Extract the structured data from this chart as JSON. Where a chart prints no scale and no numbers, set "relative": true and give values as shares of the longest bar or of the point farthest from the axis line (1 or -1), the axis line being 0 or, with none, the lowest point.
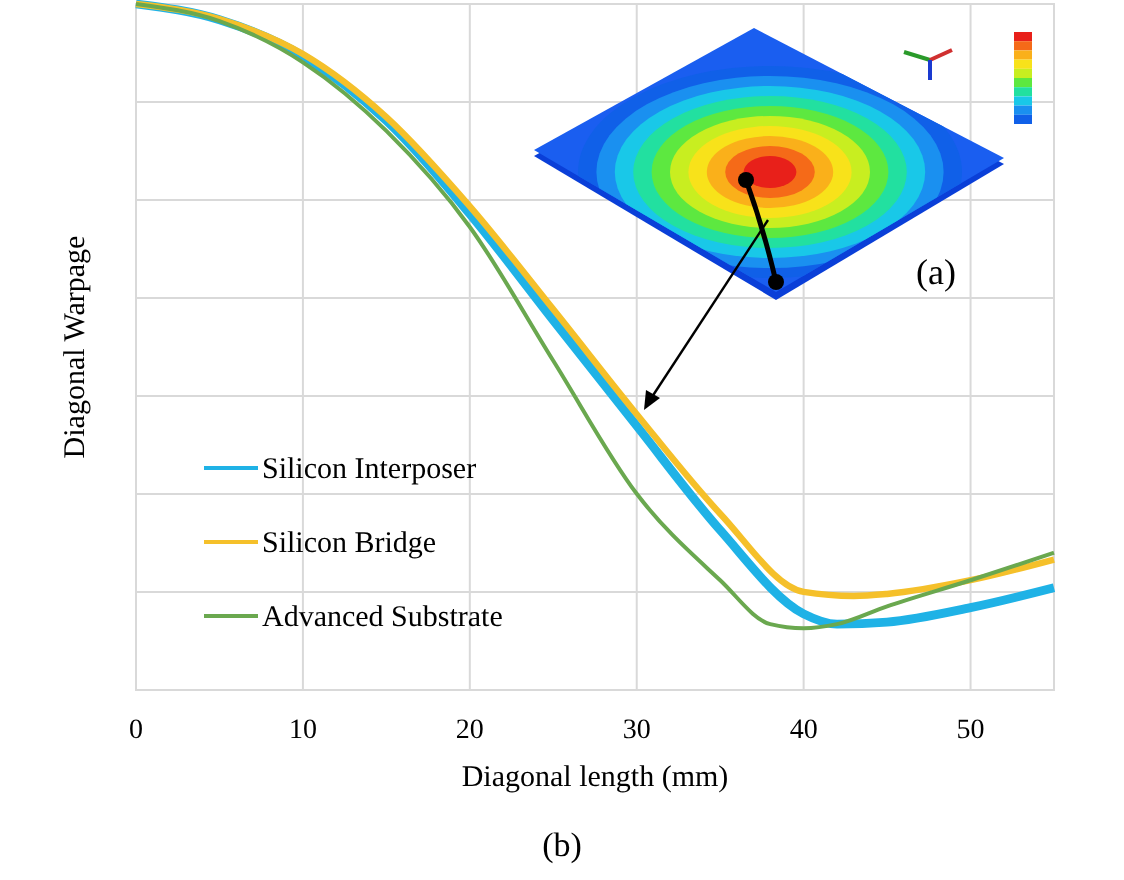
{
  "chart_data": {
    "type": "line",
    "relative": true,
    "xlabel": "Diagonal length (mm)",
    "ylabel": "Diagonal Warpage",
    "xlim": [
      0,
      55
    ],
    "xticks": [
      0,
      10,
      20,
      30,
      40,
      50
    ],
    "grid": true,
    "legend": "bottom left",
    "annotations": [
      "(a)",
      "(b)"
    ],
    "series": [
      {
        "name": "Silicon Interposer",
        "color": "#1fb2e6",
        "x": [
          0,
          5,
          10,
          15,
          20,
          25,
          30,
          35,
          40,
          42,
          45,
          50,
          55
        ],
        "values": [
          1,
          0.977,
          0.924,
          0.83,
          0.694,
          0.539,
          0.385,
          0.233,
          0.111,
          0.096,
          0.099,
          0.12,
          0.149
        ]
      },
      {
        "name": "Silicon Bridge",
        "color": "#f5c02a",
        "x": [
          0,
          5,
          10,
          15,
          20,
          25,
          30,
          35,
          40,
          43,
          45,
          50,
          55
        ],
        "values": [
          1,
          0.978,
          0.927,
          0.835,
          0.705,
          0.555,
          0.402,
          0.257,
          0.143,
          0.137,
          0.14,
          0.16,
          0.19
        ]
      },
      {
        "name": "Advanced Substrate",
        "color": "#6aa84f",
        "x": [
          0,
          5,
          10,
          15,
          20,
          25,
          30,
          35,
          38,
          40,
          42,
          45,
          50,
          55
        ],
        "values": [
          1,
          0.975,
          0.915,
          0.815,
          0.675,
          0.48,
          0.286,
          0.16,
          0.096,
          0.09,
          0.096,
          0.122,
          0.16,
          0.2
        ]
      }
    ]
  }
}
